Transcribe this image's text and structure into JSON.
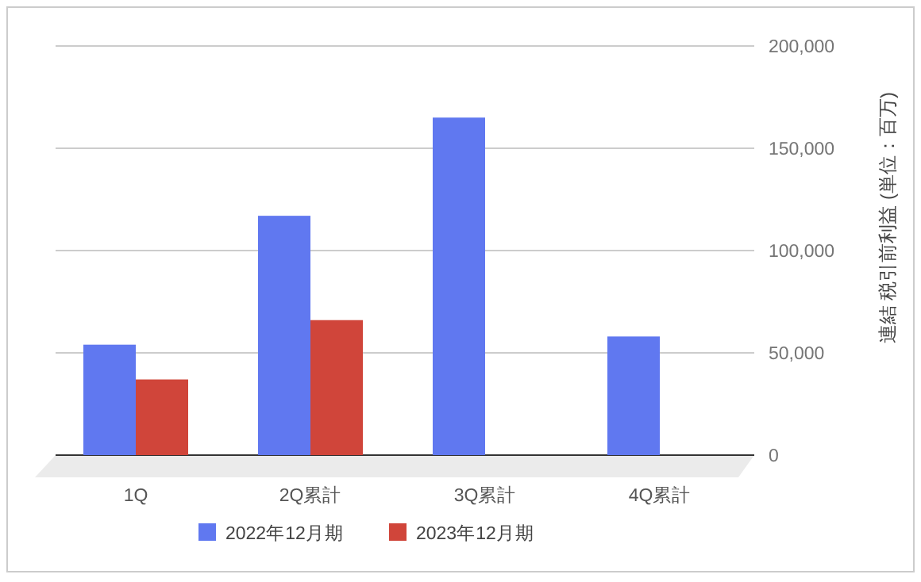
{
  "chart_data": {
    "type": "bar",
    "categories": [
      "1Q",
      "2Q累計",
      "3Q累計",
      "4Q累計"
    ],
    "series": [
      {
        "name": "2022年12月期",
        "color": "#6078f0",
        "values": [
          54000,
          117000,
          165000,
          58000
        ]
      },
      {
        "name": "2023年12月期",
        "color": "#d0453a",
        "values": [
          37000,
          66000,
          null,
          null
        ]
      }
    ],
    "ylabel": "連結 税引前利益 (単位：百万)",
    "ylim": [
      0,
      200000
    ],
    "yticks": [
      0,
      {
        "value": 50000,
        "label": "50,000"
      },
      {
        "value": 100000,
        "label": "100,000"
      },
      {
        "value": 150000,
        "label": "150,000"
      },
      {
        "value": 200000,
        "label": "200,000"
      }
    ],
    "grid": "y",
    "legend": "bottom"
  }
}
